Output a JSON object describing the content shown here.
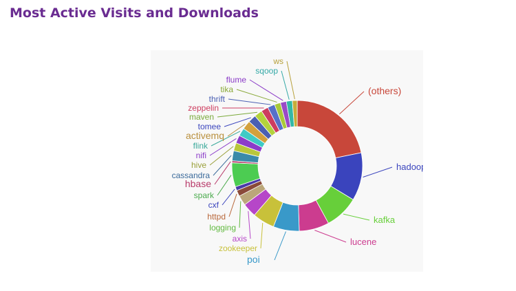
{
  "page": {
    "title": "Most Active Visits and Downloads"
  },
  "chart_data": {
    "type": "pie",
    "donut": true,
    "legend": "none",
    "categories": [
      "(others)",
      "hadoop",
      "kafka",
      "lucene",
      "poi",
      "zookeeper",
      "axis",
      "logging",
      "httpd",
      "cxf",
      "spark",
      "hbase",
      "cassandra",
      "hive",
      "nifi",
      "flink",
      "activemq",
      "tomee",
      "maven",
      "zeppelin",
      "thrift",
      "tika",
      "flume",
      "sqoop",
      "ws"
    ],
    "values": [
      22.0,
      12.0,
      8.5,
      7.5,
      6.5,
      5.5,
      3.5,
      2.5,
      1.5,
      1.0,
      6.0,
      0.5,
      2.5,
      2.0,
      2.0,
      2.0,
      2.2,
      2.0,
      2.0,
      1.8,
      1.8,
      1.5,
      1.5,
      1.5,
      1.2
    ],
    "colors": [
      "#c8473a",
      "#3a44bd",
      "#67cf3a",
      "#cc3c8f",
      "#3999c9",
      "#c8c13a",
      "#b646c8",
      "#bba77a",
      "#8a4a3a",
      "#4a3aa8",
      "#4ccc52",
      "#b83a6a",
      "#3a8aa9",
      "#b9c73b",
      "#8c3cc9",
      "#3fcbc5",
      "#d3a13d",
      "#4a5fb3",
      "#b3d23d",
      "#cd3d5f",
      "#5670c9",
      "#a9c93a",
      "#9a4ac7",
      "#33b8a6",
      "#c7ac3a"
    ],
    "labels": [
      {
        "text": "(others)",
        "color": "#c8473a",
        "size": 14
      },
      {
        "text": "hadoop",
        "color": "#3a44bd",
        "size": 13
      },
      {
        "text": "kafka",
        "color": "#67cf3a",
        "size": 13
      },
      {
        "text": "lucene",
        "color": "#cc3c8f",
        "size": 13
      },
      {
        "text": "poi",
        "color": "#3999c9",
        "size": 14
      },
      {
        "text": "zookeeper",
        "color": "#c8c13a",
        "size": 12
      },
      {
        "text": "axis",
        "color": "#b646c8",
        "size": 12
      },
      {
        "text": "logging",
        "color": "#61b93f",
        "size": 12
      },
      {
        "text": "httpd",
        "color": "#b9683b",
        "size": 12
      },
      {
        "text": "cxf",
        "color": "#3a44bd",
        "size": 12
      },
      {
        "text": "spark",
        "color": "#4aaa4c",
        "size": 12
      },
      {
        "text": "hbase",
        "color": "#b83a6a",
        "size": 14
      },
      {
        "text": "cassandra",
        "color": "#3a6a9a",
        "size": 12
      },
      {
        "text": "hive",
        "color": "#9aa03a",
        "size": 12
      },
      {
        "text": "nifi",
        "color": "#8c3cc9",
        "size": 12
      },
      {
        "text": "flink",
        "color": "#3aa99a",
        "size": 12
      },
      {
        "text": "activemq",
        "color": "#b9903d",
        "size": 14
      },
      {
        "text": "tomee",
        "color": "#3a44bd",
        "size": 12
      },
      {
        "text": "maven",
        "color": "#7aa93a",
        "size": 12
      },
      {
        "text": "zeppelin",
        "color": "#cd3d5f",
        "size": 12
      },
      {
        "text": "thrift",
        "color": "#4a5fb3",
        "size": 12
      },
      {
        "text": "tika",
        "color": "#8aa93a",
        "size": 12
      },
      {
        "text": "flume",
        "color": "#8a3ac7",
        "size": 12
      },
      {
        "text": "sqoop",
        "color": "#33a8a6",
        "size": 12
      },
      {
        "text": "ws",
        "color": "#b7a03a",
        "size": 12
      }
    ]
  }
}
